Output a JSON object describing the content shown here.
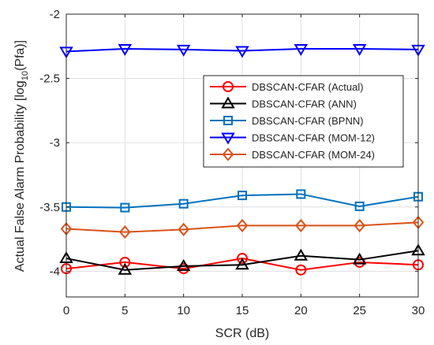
{
  "chart_data": {
    "type": "line",
    "xlabel": "SCR (dB)",
    "ylabel": {
      "prefix": "Actual False Alarm Probability [log",
      "subscript": "10",
      "suffix": "(Pfa)]"
    },
    "xlim": [
      0,
      30
    ],
    "ylim": [
      -4.2,
      -2
    ],
    "xticks": [
      0,
      5,
      10,
      15,
      20,
      25,
      30
    ],
    "yticks": [
      -4,
      -3.5,
      -3,
      -2.5,
      -2
    ],
    "ytick_labels": [
      "-4",
      "-3.5",
      "-3",
      "-2.5",
      "-2"
    ],
    "grid": true,
    "legend_position": "right, near the top",
    "x": [
      0,
      5,
      10,
      15,
      20,
      25,
      30
    ],
    "series": [
      {
        "name": "DBSCAN-CFAR (Actual)",
        "color": "#ff0000",
        "marker": "circle",
        "values": [
          -3.98,
          -3.93,
          -3.98,
          -3.9,
          -3.99,
          -3.93,
          -3.95
        ]
      },
      {
        "name": "DBSCAN-CFAR (ANN)",
        "color": "#000000",
        "marker": "triangle-up",
        "values": [
          -3.9,
          -3.99,
          -3.96,
          -3.95,
          -3.88,
          -3.91,
          -3.84
        ]
      },
      {
        "name": "DBSCAN-CFAR (BPNN)",
        "color": "#0072bd",
        "marker": "square",
        "values": [
          -3.5,
          -3.505,
          -3.475,
          -3.41,
          -3.4,
          -3.495,
          -3.42
        ]
      },
      {
        "name": "DBSCAN-CFAR (MOM-12)",
        "color": "#0000ff",
        "marker": "triangle-down",
        "values": [
          -2.29,
          -2.27,
          -2.275,
          -2.285,
          -2.27,
          -2.27,
          -2.275
        ]
      },
      {
        "name": "DBSCAN-CFAR (MOM-24)",
        "color": "#d95319",
        "marker": "diamond",
        "values": [
          -3.67,
          -3.695,
          -3.675,
          -3.645,
          -3.645,
          -3.645,
          -3.62
        ]
      }
    ]
  }
}
